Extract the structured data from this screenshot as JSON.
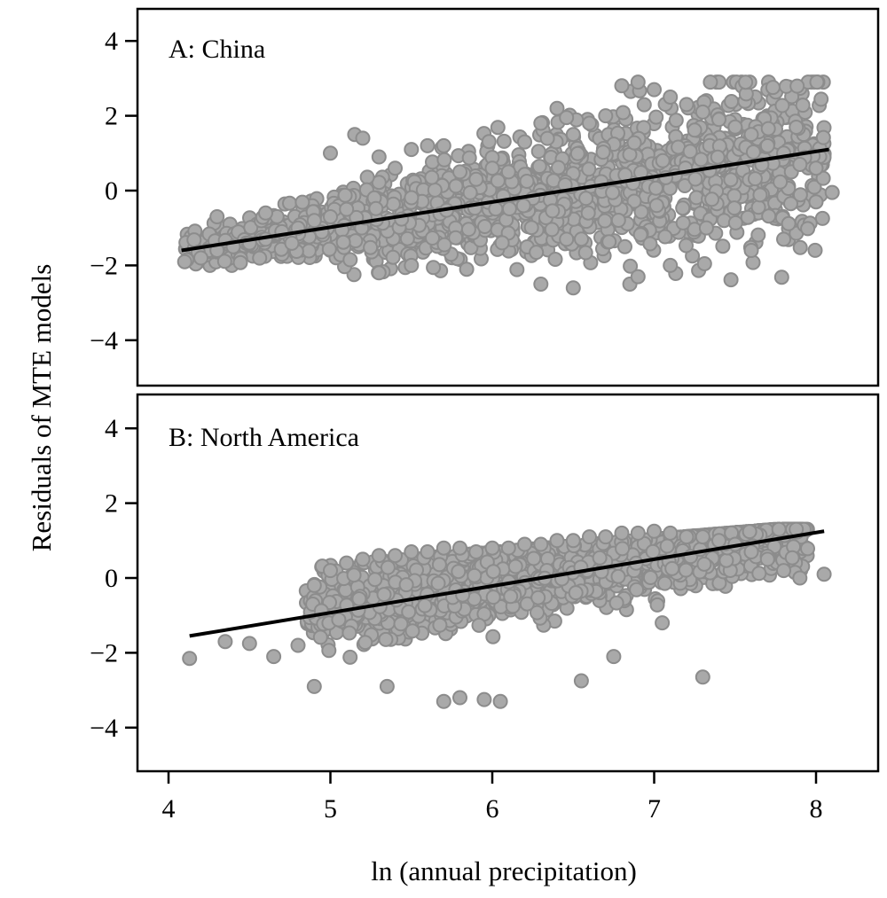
{
  "ylabel": "Residuals of MTE models",
  "xlabel": "ln (annual precipitation)",
  "colors": {
    "points_fill": "#a9a9a9",
    "points_stroke": "#8c8c8c",
    "fit_line": "#000000",
    "frame": "#000000"
  },
  "chart_data": [
    {
      "type": "scatter",
      "title": "A: China",
      "xlim": [
        3.8,
        8.3
      ],
      "ylim": [
        -5.0,
        4.8
      ],
      "x_ticks": [
        "4",
        "5",
        "6",
        "7",
        "8"
      ],
      "y_ticks": [
        "4",
        "2",
        "0",
        "−2",
        "−4"
      ],
      "fit_line": {
        "x": [
          4.08,
          8.08
        ],
        "y": [
          -1.6,
          1.1
        ]
      },
      "grid": false,
      "series": [
        {
          "x": [
            4.1,
            4.2,
            4.3,
            4.4,
            4.5,
            4.6,
            4.7,
            4.8,
            4.9,
            5.0,
            5.1,
            5.15,
            5.2,
            5.3,
            5.4,
            5.5,
            5.6,
            5.7,
            5.8,
            5.9,
            6.0,
            6.1,
            6.2,
            6.3,
            6.4,
            6.5,
            6.6,
            6.7,
            6.8,
            6.9,
            7.0,
            7.1,
            7.2,
            7.3,
            7.4,
            7.5,
            7.6,
            7.7,
            7.8,
            7.9,
            8.0,
            8.1,
            4.3,
            4.6,
            5.0,
            5.3,
            5.5,
            6.3,
            6.5,
            6.85,
            6.9,
            7.1,
            7.6,
            7.8,
            8.0
          ],
          "y": [
            -1.9,
            -1.8,
            -1.6,
            -1.5,
            -1.4,
            -1.3,
            -1.1,
            -1.0,
            -0.8,
            -0.7,
            -0.5,
            1.5,
            1.4,
            0.9,
            0.6,
            1.1,
            1.2,
            1.2,
            0.5,
            0.3,
            0.6,
            0.5,
            1.3,
            1.8,
            2.2,
            1.5,
            1.8,
            2.0,
            2.8,
            2.9,
            2.7,
            2.5,
            2.3,
            2.1,
            1.9,
            1.7,
            1.5,
            1.2,
            1.0,
            0.7,
            0.6,
            -0.05,
            -0.7,
            -0.6,
            1.0,
            -2.2,
            -2.0,
            -2.5,
            -2.6,
            -2.5,
            -2.3,
            -2.0,
            -1.6,
            -1.3,
            -0.3
          ]
        }
      ]
    },
    {
      "type": "scatter",
      "title": "B: North America",
      "xlim": [
        3.8,
        8.3
      ],
      "ylim": [
        -5.0,
        4.8
      ],
      "x_ticks": [
        "4",
        "5",
        "6",
        "7",
        "8"
      ],
      "y_ticks": [
        "4",
        "2",
        "0",
        "−2",
        "−4"
      ],
      "fit_line": {
        "x": [
          4.13,
          8.05
        ],
        "y": [
          -1.55,
          1.25
        ]
      },
      "grid": false,
      "series": [
        {
          "x": [
            4.13,
            4.35,
            4.5,
            4.65,
            4.8,
            4.9,
            5.0,
            5.1,
            5.2,
            5.3,
            5.4,
            5.5,
            5.6,
            5.7,
            5.8,
            5.9,
            6.0,
            6.1,
            6.2,
            6.3,
            6.4,
            6.5,
            6.6,
            6.7,
            6.8,
            6.9,
            7.0,
            7.1,
            7.2,
            7.3,
            7.4,
            7.5,
            7.6,
            7.7,
            7.8,
            7.9,
            8.05,
            4.9,
            5.35,
            5.7,
            5.8,
            5.95,
            6.05,
            6.55,
            7.3,
            7.05,
            6.75
          ],
          "y": [
            -2.15,
            -1.7,
            -1.75,
            -2.1,
            -1.8,
            -2.9,
            0.2,
            0.4,
            0.5,
            0.6,
            0.6,
            0.7,
            0.7,
            0.8,
            0.8,
            0.7,
            0.8,
            0.8,
            0.9,
            0.9,
            1.0,
            1.0,
            1.1,
            1.1,
            1.2,
            1.2,
            1.25,
            1.2,
            1.1,
            1.1,
            1.0,
            0.9,
            0.7,
            0.5,
            0.2,
            0.0,
            0.1,
            -0.2,
            -2.9,
            -3.3,
            -3.2,
            -3.25,
            -3.3,
            -2.75,
            -2.65,
            -1.2,
            -2.1
          ]
        }
      ]
    }
  ]
}
